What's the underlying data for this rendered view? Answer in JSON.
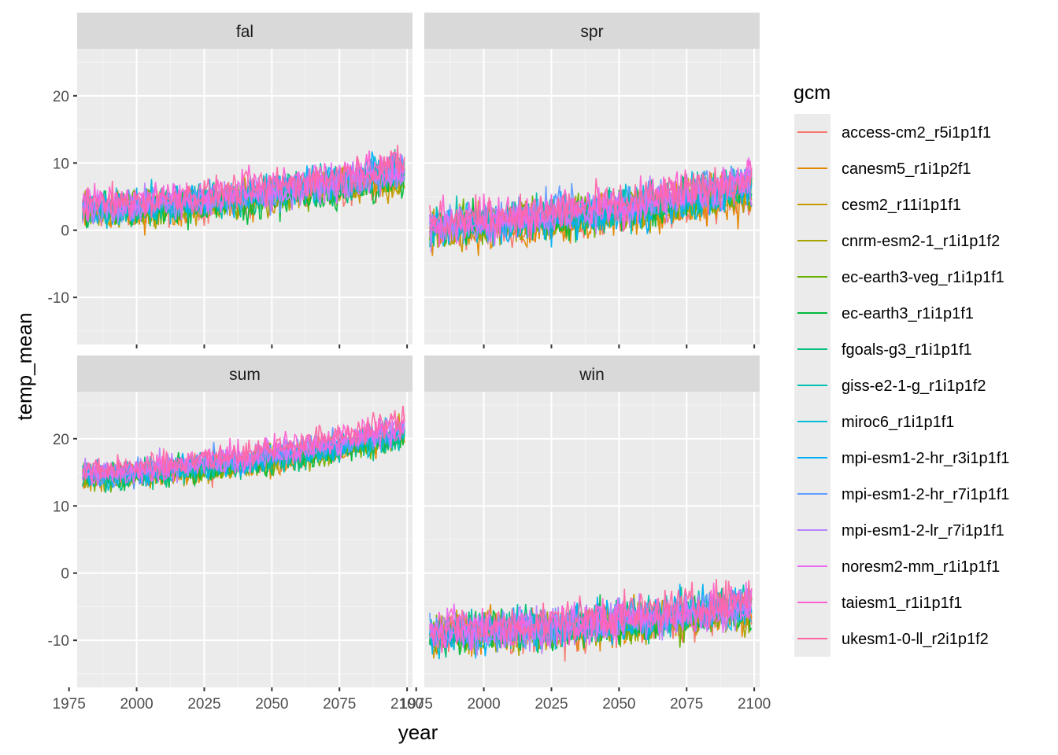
{
  "chart_data": {
    "type": "line",
    "xlabel": "year",
    "ylabel": "temp_mean",
    "xlim": [
      1978,
      2102
    ],
    "ylim": [
      -17,
      27
    ],
    "x_ticks": [
      1975,
      2000,
      2025,
      2050,
      2075,
      2100
    ],
    "x_tick_labels": [
      "1975",
      "2000",
      "2025",
      "2050",
      "2075",
      "2100"
    ],
    "y_ticks": [
      -10,
      0,
      10,
      20
    ],
    "y_tick_labels": [
      "-10",
      "0",
      "10",
      "20"
    ],
    "x_range": [
      1980,
      2099
    ],
    "legend": {
      "title": "gcm",
      "position": "right"
    },
    "panels": [
      {
        "label": "fal",
        "mean_start": 3.0,
        "mean_end": 8.5,
        "noise": 1.3,
        "model_spread": 2.2
      },
      {
        "label": "spr",
        "mean_start": 0.5,
        "mean_end": 6.5,
        "noise": 1.5,
        "model_spread": 2.0
      },
      {
        "label": "sum",
        "mean_start": 14.5,
        "mean_end": 21.0,
        "noise": 1.0,
        "model_spread": 1.8
      },
      {
        "label": "win",
        "mean_start": -9.0,
        "mean_end": -5.0,
        "noise": 1.5,
        "model_spread": 1.6
      }
    ],
    "series": [
      {
        "name": "access-cm2_r5i1p1f1",
        "color": "#F8766D"
      },
      {
        "name": "canesm5_r1i1p2f1",
        "color": "#E58700"
      },
      {
        "name": "cesm2_r11i1p1f1",
        "color": "#C99800"
      },
      {
        "name": "cnrm-esm2-1_r1i1p1f2",
        "color": "#A3A500"
      },
      {
        "name": "ec-earth3-veg_r1i1p1f1",
        "color": "#6BB100"
      },
      {
        "name": "ec-earth3_r1i1p1f1",
        "color": "#00BA38"
      },
      {
        "name": "fgoals-g3_r1i1p1f1",
        "color": "#00BF7D"
      },
      {
        "name": "giss-e2-1-g_r1i1p1f2",
        "color": "#00C0AF"
      },
      {
        "name": "miroc6_r1i1p1f1",
        "color": "#00BCD8"
      },
      {
        "name": "mpi-esm1-2-hr_r3i1p1f1",
        "color": "#00B0F6"
      },
      {
        "name": "mpi-esm1-2-hr_r7i1p1f1",
        "color": "#619CFF"
      },
      {
        "name": "mpi-esm1-2-lr_r7i1p1f1",
        "color": "#B983FF"
      },
      {
        "name": "noresm2-mm_r1i1p1f1",
        "color": "#E76BF3"
      },
      {
        "name": "taiesm1_r1i1p1f1",
        "color": "#FD61D1"
      },
      {
        "name": "ukesm1-0-ll_r2i1p1f2",
        "color": "#FF67A4"
      }
    ]
  }
}
